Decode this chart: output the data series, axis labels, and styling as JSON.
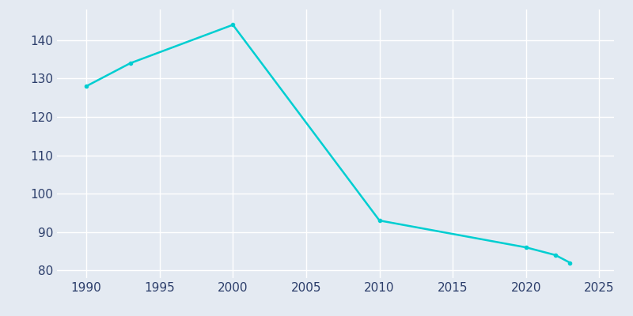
{
  "years": [
    1990,
    1993,
    2000,
    2010,
    2020,
    2022,
    2023
  ],
  "population": [
    128,
    134,
    144,
    93,
    86,
    84,
    82
  ],
  "line_color": "#00CED1",
  "marker": "o",
  "marker_size": 3,
  "line_width": 1.8,
  "background_color": "#E4EAF2",
  "grid_color": "#FFFFFF",
  "xlim": [
    1988,
    2026
  ],
  "ylim": [
    78,
    148
  ],
  "xticks": [
    1990,
    1995,
    2000,
    2005,
    2010,
    2015,
    2020,
    2025
  ],
  "yticks": [
    80,
    90,
    100,
    110,
    120,
    130,
    140
  ],
  "tick_label_color": "#2C3E6B",
  "tick_fontsize": 11
}
